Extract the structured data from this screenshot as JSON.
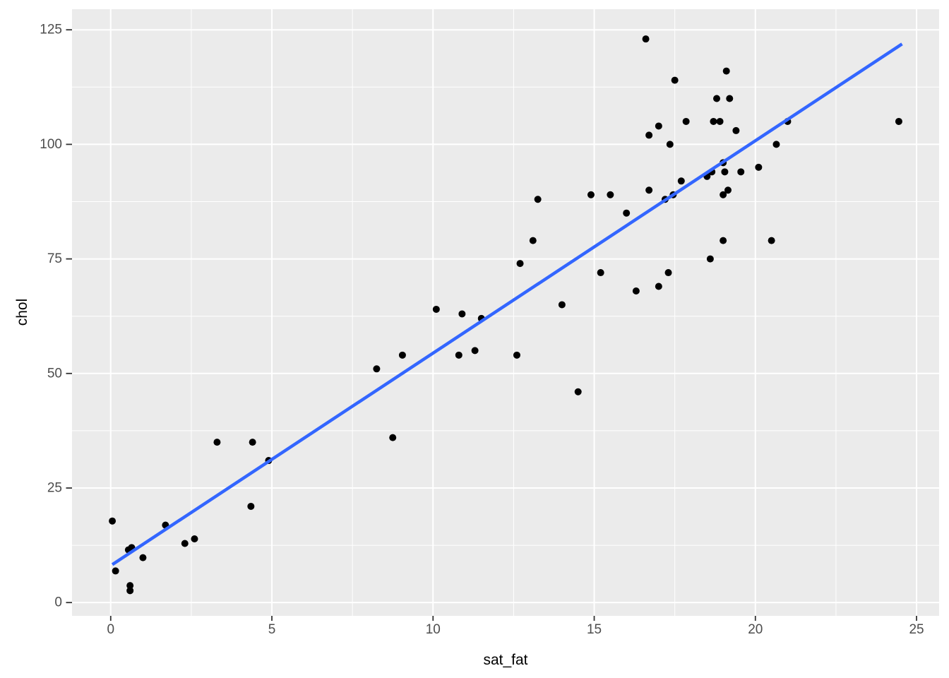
{
  "chart_data": {
    "type": "scatter",
    "title": "",
    "xlabel": "sat_fat",
    "ylabel": "chol",
    "x_ticks": [
      0,
      5,
      10,
      15,
      20,
      25
    ],
    "y_ticks": [
      0,
      25,
      50,
      75,
      100,
      125
    ],
    "x_minor_gridlines": [
      2.5,
      7.5,
      12.5,
      17.5,
      22.5
    ],
    "y_minor_gridlines": [
      12.5,
      37.5,
      62.5,
      87.5,
      112.5
    ],
    "xlim": [
      -1.2,
      25.7
    ],
    "ylim": [
      -2.9,
      129.5
    ],
    "grid": "major-and-minor",
    "legend": "none",
    "points": [
      [
        0.05,
        17.8
      ],
      [
        0.15,
        6.9
      ],
      [
        0.55,
        11.5
      ],
      [
        0.6,
        2.6
      ],
      [
        0.6,
        3.7
      ],
      [
        0.65,
        12.0
      ],
      [
        1.0,
        9.8
      ],
      [
        1.7,
        16.9
      ],
      [
        2.3,
        12.9
      ],
      [
        2.6,
        13.9
      ],
      [
        3.3,
        35.0
      ],
      [
        4.35,
        21.0
      ],
      [
        4.4,
        35.0
      ],
      [
        4.9,
        31.0
      ],
      [
        8.25,
        51.0
      ],
      [
        8.75,
        36.0
      ],
      [
        9.05,
        54.0
      ],
      [
        10.1,
        64.0
      ],
      [
        10.8,
        54.0
      ],
      [
        10.9,
        63.0
      ],
      [
        11.3,
        55.0
      ],
      [
        11.5,
        62.0
      ],
      [
        12.6,
        54.0
      ],
      [
        12.7,
        74.0
      ],
      [
        13.1,
        79.0
      ],
      [
        13.25,
        88.0
      ],
      [
        14.0,
        65.0
      ],
      [
        14.5,
        46.0
      ],
      [
        14.9,
        89.0
      ],
      [
        15.2,
        72.0
      ],
      [
        15.5,
        89.0
      ],
      [
        16.0,
        85.0
      ],
      [
        16.3,
        68.0
      ],
      [
        16.6,
        123.0
      ],
      [
        16.7,
        90.0
      ],
      [
        16.7,
        102.0
      ],
      [
        17.0,
        69.0
      ],
      [
        17.0,
        104.0
      ],
      [
        17.2,
        88.0
      ],
      [
        17.3,
        72.0
      ],
      [
        17.35,
        100.0
      ],
      [
        17.45,
        89.0
      ],
      [
        17.5,
        114.0
      ],
      [
        17.7,
        92.0
      ],
      [
        17.85,
        105.0
      ],
      [
        18.5,
        93.0
      ],
      [
        18.6,
        75.0
      ],
      [
        18.65,
        94.0
      ],
      [
        18.7,
        105.0
      ],
      [
        18.8,
        110.0
      ],
      [
        18.9,
        105.0
      ],
      [
        19.0,
        79.0
      ],
      [
        19.0,
        89.0
      ],
      [
        19.0,
        96.0
      ],
      [
        19.05,
        94.0
      ],
      [
        19.1,
        116.0
      ],
      [
        19.15,
        90.0
      ],
      [
        19.2,
        110.0
      ],
      [
        19.4,
        103.0
      ],
      [
        19.55,
        94.0
      ],
      [
        20.1,
        95.0
      ],
      [
        20.5,
        79.0
      ],
      [
        20.65,
        100.0
      ],
      [
        21.0,
        105.0
      ],
      [
        24.45,
        105.0
      ]
    ],
    "trend_line": {
      "type": "linear",
      "x_start": 0.05,
      "y_start": 8.3,
      "x_end": 24.55,
      "y_end": 121.9,
      "color": "#3366FF"
    },
    "colors": {
      "panel_background": "#EBEBEB",
      "gridline": "#FFFFFF",
      "point": "#000000",
      "tick_mark": "#333333",
      "tick_label": "#4D4D4D",
      "axis_title": "#000000",
      "outer_background": "#FFFFFF"
    }
  }
}
